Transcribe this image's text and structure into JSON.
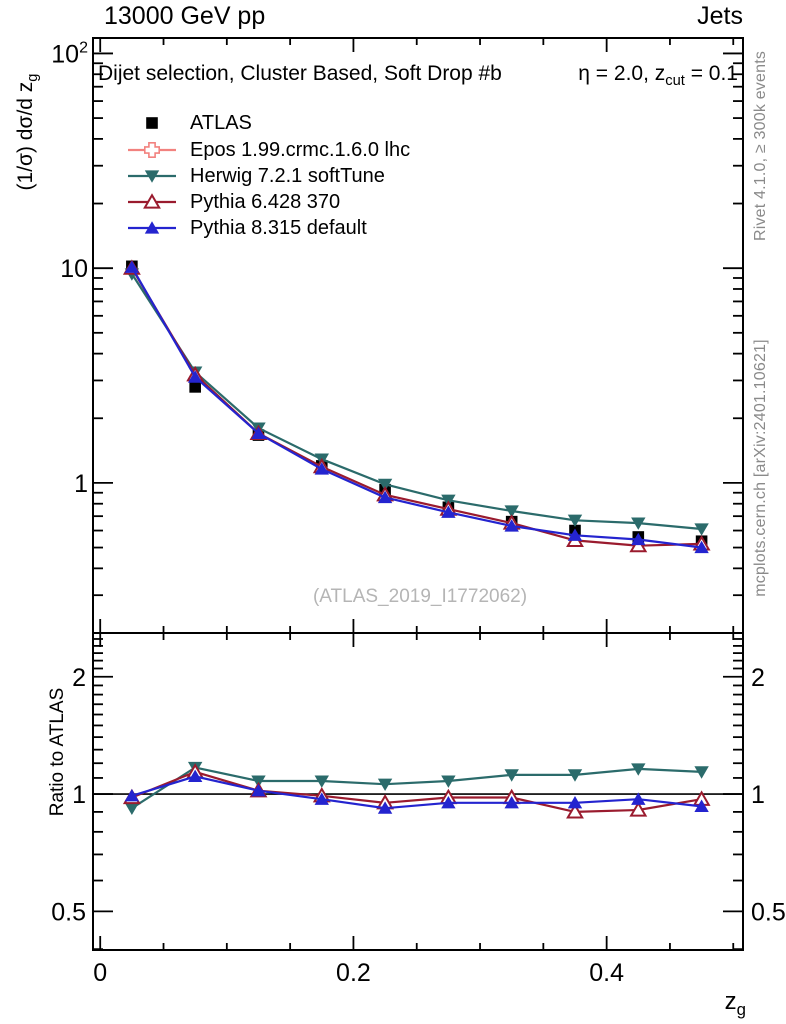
{
  "header": {
    "energy_label": "13000 GeV pp",
    "topic_label": "Jets"
  },
  "panel_title": {
    "left": "Dijet selection, Cluster Based, Soft Drop #b",
    "right_pre": "η = 2.0, z",
    "right_sub": "cut",
    "right_post": " = 0.1"
  },
  "watermark": "(ATLAS_2019_I1772062)",
  "side_notes": {
    "top": "Rivet 4.1.0, ≥ 300k events",
    "bottom": "mcplots.cern.ch [arXiv:2401.10621]"
  },
  "y_axis_main_label": {
    "pre": "(1/σ) dσ/d z",
    "sub": "g"
  },
  "y_axis_ratio_label": "Ratio to ATLAS",
  "x_axis_label": {
    "pre": "z",
    "sub": "g"
  },
  "chart_data": {
    "type": "line",
    "title": "Dijet selection, Cluster Based, Soft Drop #b η = 2.0, z_cut = 0.1",
    "xlabel": "z_g",
    "ylabel_main": "(1/σ) dσ/d z_g",
    "ylabel_ratio": "Ratio to ATLAS",
    "x": [
      0.025,
      0.075,
      0.125,
      0.175,
      0.225,
      0.275,
      0.325,
      0.375,
      0.425,
      0.475
    ],
    "series": [
      {
        "name": "ATLAS",
        "marker": "filled-square",
        "color": "#000000",
        "line": false,
        "values": [
          10.2,
          2.8,
          1.67,
          1.2,
          0.93,
          0.77,
          0.66,
          0.6,
          0.56,
          0.535
        ],
        "ratio": null
      },
      {
        "name": "Epos 1.99.crmc.1.6.0 lhc",
        "marker": "open-cross",
        "color": "#f2827f",
        "line": true,
        "values": null,
        "ratio": null
      },
      {
        "name": "Herwig 7.2.1 softTune",
        "marker": "filled-triangle-down",
        "color": "#2b6b6b",
        "line": true,
        "values": [
          9.4,
          3.28,
          1.8,
          1.29,
          0.985,
          0.83,
          0.74,
          0.67,
          0.65,
          0.61
        ],
        "ratio": [
          0.92,
          1.17,
          1.08,
          1.08,
          1.06,
          1.08,
          1.12,
          1.12,
          1.16,
          1.14
        ]
      },
      {
        "name": "Pythia 6.428 370",
        "marker": "open-triangle-up",
        "color": "#9a1b2e",
        "line": true,
        "values": [
          10.0,
          3.19,
          1.7,
          1.19,
          0.88,
          0.755,
          0.65,
          0.54,
          0.51,
          0.52
        ],
        "ratio": [
          0.98,
          1.14,
          1.02,
          0.99,
          0.95,
          0.98,
          0.98,
          0.9,
          0.91,
          0.97
        ]
      },
      {
        "name": "Pythia 8.315 default",
        "marker": "filled-triangle-up",
        "color": "#2424cf",
        "line": true,
        "values": [
          10.1,
          3.11,
          1.7,
          1.16,
          0.855,
          0.73,
          0.63,
          0.57,
          0.545,
          0.5
        ],
        "ratio": [
          0.99,
          1.11,
          1.02,
          0.97,
          0.92,
          0.95,
          0.95,
          0.95,
          0.97,
          0.93
        ]
      }
    ],
    "axes": {
      "x": {
        "min": -0.0057,
        "max": 0.5077,
        "major": [
          0,
          0.2,
          0.4
        ],
        "labels": [
          "0",
          "0.2",
          "0.4"
        ],
        "minor_step": 0.05
      },
      "y_main": {
        "scale": "log",
        "min": 0.2,
        "max": 118,
        "major": [
          1,
          10,
          100
        ],
        "major_labels": [
          {
            "t": "1"
          },
          {
            "t": "10"
          },
          {
            "t": "10",
            "sup": "2"
          }
        ]
      },
      "y_ratio": {
        "scale": "log",
        "min": 0.398,
        "max": 2.59,
        "major": [
          0.5,
          1,
          2
        ],
        "major_labels": [
          {
            "t": "0.5"
          },
          {
            "t": "1"
          },
          {
            "t": "2"
          }
        ],
        "minor": [
          0.4,
          0.6,
          0.7,
          0.8,
          0.9,
          1.1,
          1.2,
          1.3,
          1.4,
          1.5,
          1.6,
          1.7,
          1.8,
          1.9,
          2.1,
          2.2,
          2.3,
          2.4,
          2.5
        ],
        "reference_line": 1
      }
    },
    "legend_position": "top-left",
    "grid": false
  }
}
